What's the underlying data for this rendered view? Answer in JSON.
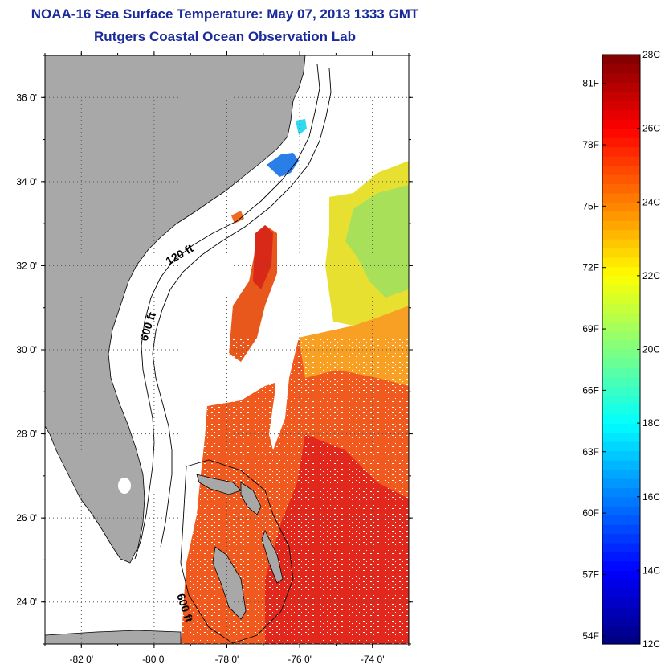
{
  "title": "NOAA-16 Sea Surface Temperature:  May 07, 2013 1333 GMT",
  "subtitle": "Rutgers Coastal Ocean Observation Lab",
  "map": {
    "lon_range": [
      -83,
      -73
    ],
    "lat_range": [
      23,
      37
    ],
    "lon_ticks": [
      {
        "value": -82,
        "label": "-82 0'"
      },
      {
        "value": -80,
        "label": "-80 0'"
      },
      {
        "value": -78,
        "label": "-78 0'"
      },
      {
        "value": -76,
        "label": "-76 0'"
      },
      {
        "value": -74,
        "label": "-74 0'"
      }
    ],
    "lat_ticks": [
      {
        "value": 24,
        "label": "24 0'"
      },
      {
        "value": 26,
        "label": "26 0'"
      },
      {
        "value": 28,
        "label": "28 0'"
      },
      {
        "value": 30,
        "label": "30 0'"
      },
      {
        "value": 32,
        "label": "32 0'"
      },
      {
        "value": 34,
        "label": "34 0'"
      },
      {
        "value": 36,
        "label": "36 0'"
      }
    ],
    "contour_labels": [
      "120 ft",
      "600 ft",
      "600 ft"
    ],
    "colors": {
      "land": "#a8a8a8",
      "water_missing": "#ffffff",
      "grid": "#555555"
    }
  },
  "colorbar": {
    "range_c": [
      12,
      28
    ],
    "celsius_ticks": [
      {
        "value": 28,
        "label": "28C"
      },
      {
        "value": 26,
        "label": "26C"
      },
      {
        "value": 24,
        "label": "24C"
      },
      {
        "value": 22,
        "label": "22C"
      },
      {
        "value": 20,
        "label": "20C"
      },
      {
        "value": 18,
        "label": "18C"
      },
      {
        "value": 16,
        "label": "16C"
      },
      {
        "value": 14,
        "label": "14C"
      },
      {
        "value": 12,
        "label": "12C"
      }
    ],
    "fahrenheit_ticks": [
      {
        "value": 81,
        "label": "81F"
      },
      {
        "value": 78,
        "label": "78F"
      },
      {
        "value": 75,
        "label": "75F"
      },
      {
        "value": 72,
        "label": "72F"
      },
      {
        "value": 69,
        "label": "69F"
      },
      {
        "value": 66,
        "label": "66F"
      },
      {
        "value": 63,
        "label": "63F"
      },
      {
        "value": 60,
        "label": "60F"
      },
      {
        "value": 57,
        "label": "57F"
      },
      {
        "value": 54,
        "label": "54F"
      }
    ]
  }
}
